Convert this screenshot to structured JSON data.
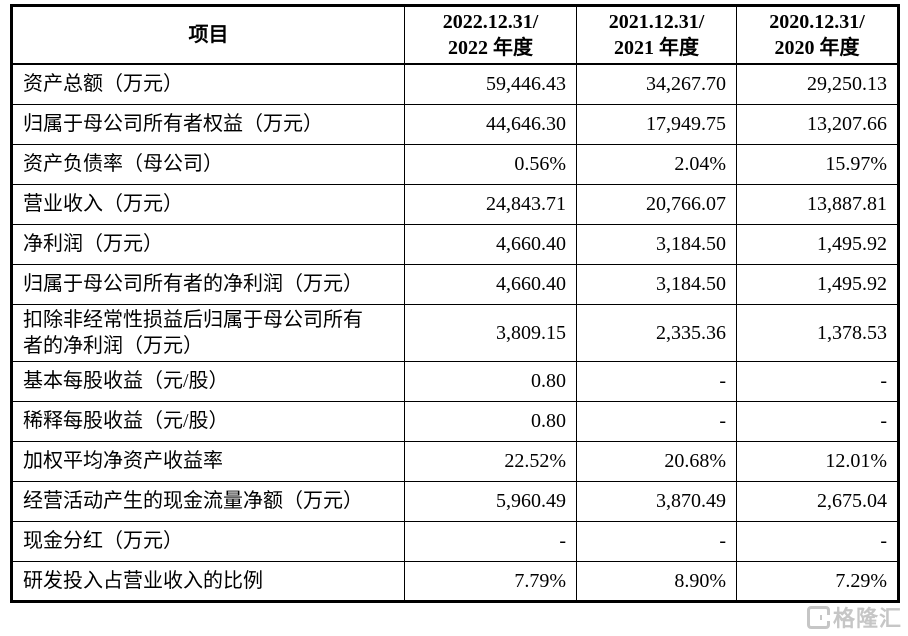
{
  "table": {
    "columns": {
      "item": "项目",
      "periods": [
        "2022.12.31/\n2022 年度",
        "2021.12.31/\n2021 年度",
        "2020.12.31/\n2020 年度"
      ]
    },
    "rows": [
      {
        "label": "资产总额（万元）",
        "values": [
          "59,446.43",
          "34,267.70",
          "29,250.13"
        ]
      },
      {
        "label": "归属于母公司所有者权益（万元）",
        "values": [
          "44,646.30",
          "17,949.75",
          "13,207.66"
        ]
      },
      {
        "label": "资产负债率（母公司）",
        "values": [
          "0.56%",
          "2.04%",
          "15.97%"
        ]
      },
      {
        "label": "营业收入（万元）",
        "values": [
          "24,843.71",
          "20,766.07",
          "13,887.81"
        ]
      },
      {
        "label": "净利润（万元）",
        "values": [
          "4,660.40",
          "3,184.50",
          "1,495.92"
        ]
      },
      {
        "label": "归属于母公司所有者的净利润（万元）",
        "values": [
          "4,660.40",
          "3,184.50",
          "1,495.92"
        ]
      },
      {
        "label": "扣除非经常性损益后归属于母公司所有\n者的净利润（万元）",
        "values": [
          "3,809.15",
          "2,335.36",
          "1,378.53"
        ]
      },
      {
        "label": "基本每股收益（元/股）",
        "values": [
          "0.80",
          "-",
          "-"
        ]
      },
      {
        "label": "稀释每股收益（元/股）",
        "values": [
          "0.80",
          "-",
          "-"
        ]
      },
      {
        "label": "加权平均净资产收益率",
        "values": [
          "22.52%",
          "20.68%",
          "12.01%"
        ]
      },
      {
        "label": "经营活动产生的现金流量净额（万元）",
        "values": [
          "5,960.49",
          "3,870.49",
          "2,675.04"
        ]
      },
      {
        "label": "现金分红（万元）",
        "values": [
          "-",
          "-",
          "-"
        ]
      },
      {
        "label": "研发投入占营业收入的比例",
        "values": [
          "7.79%",
          "8.90%",
          "7.29%"
        ]
      }
    ]
  },
  "watermark": {
    "text": "格隆汇"
  },
  "colors": {
    "border": "#000000",
    "text": "#000000",
    "watermark": "#b4b4b4",
    "background": "#ffffff"
  }
}
